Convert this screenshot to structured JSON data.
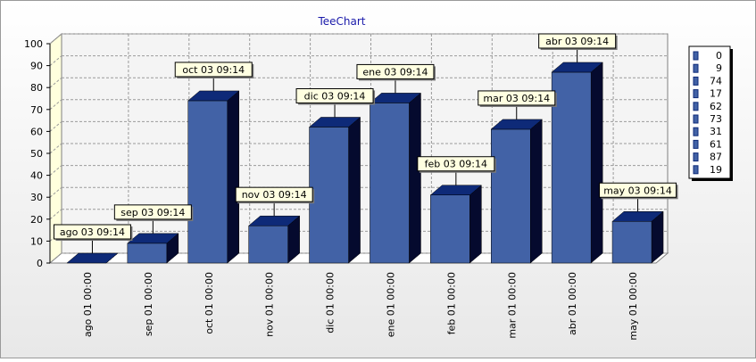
{
  "title": "TeeChart",
  "colors": {
    "bar_front": "#4262A6",
    "bar_top": "#0E2A78",
    "bar_side": "#050A2E",
    "callout_bg": "#FFFFE1",
    "title": "#1A1AAA",
    "grid": "#9A9A9A",
    "back_wall": "#F4F4F4",
    "left_wall": "#FFFFDD"
  },
  "chart_data": {
    "type": "bar",
    "view": "3d",
    "grid": true,
    "legend_position": "right",
    "ylim": [
      0,
      100
    ],
    "y_ticks": [
      0,
      10,
      20,
      30,
      40,
      50,
      60,
      70,
      80,
      90,
      100
    ],
    "categories": [
      "ago 01 00:00",
      "sep 01 00:00",
      "oct 01 00:00",
      "nov 01 00:00",
      "dic 01 00:00",
      "ene 01 00:00",
      "feb 01 00:00",
      "mar 01 00:00",
      "abr 01 00:00",
      "may 01 00:00"
    ],
    "values": [
      0,
      9,
      74,
      17,
      62,
      73,
      31,
      61,
      87,
      19
    ],
    "marks": [
      "ago 03 09:14",
      "sep 03 09:14",
      "oct 03 09:14",
      "nov 03 09:14",
      "dic 03 09:14",
      "ene 03 09:14",
      "feb 03 09:14",
      "mar 03 09:14",
      "abr 03 09:14",
      "may 03 09:14"
    ],
    "legend": [
      "0",
      "9",
      "74",
      "17",
      "62",
      "73",
      "31",
      "61",
      "87",
      "19"
    ]
  }
}
